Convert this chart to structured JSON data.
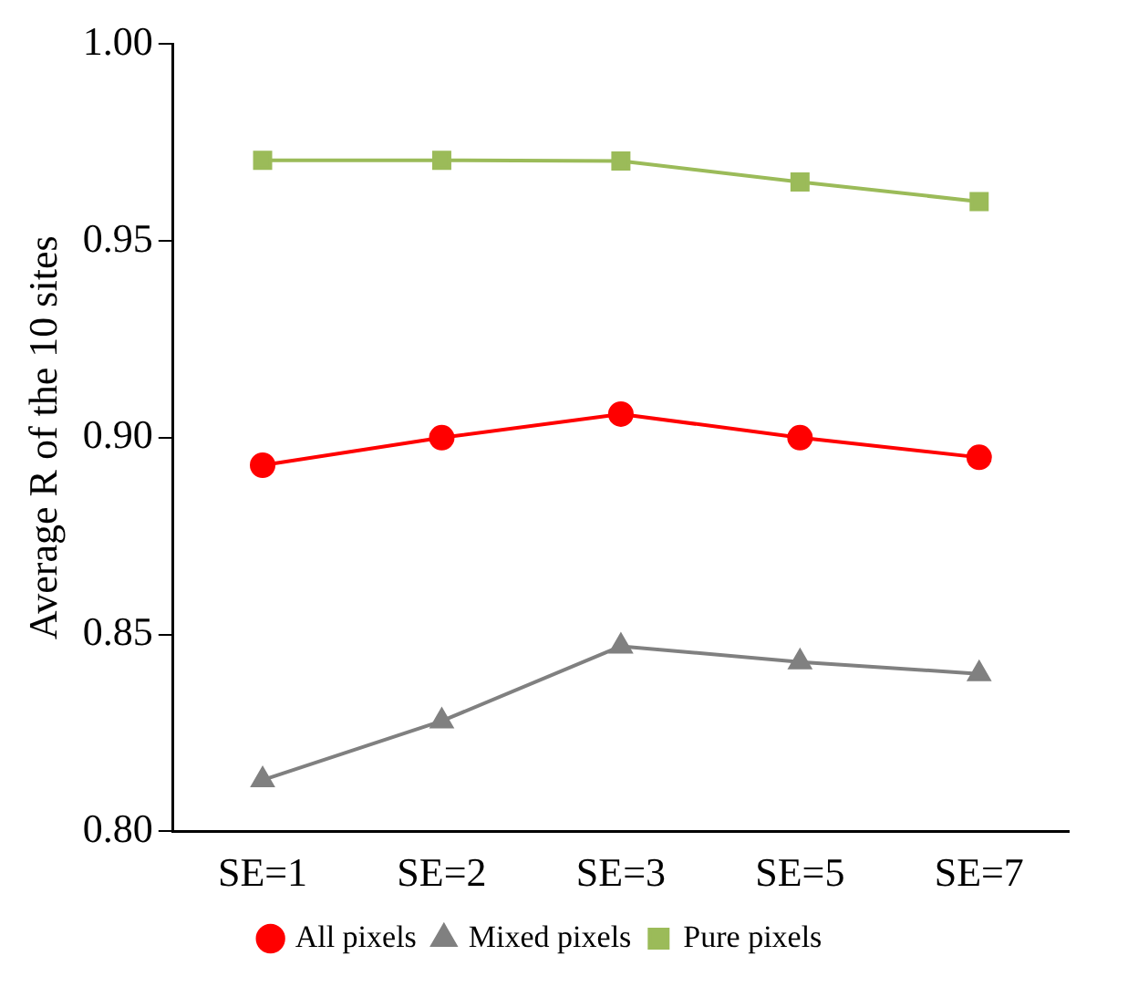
{
  "chart_data": {
    "type": "line",
    "ylabel": "Average R of the 10 sites",
    "categories": [
      "SE=1",
      "SE=2",
      "SE=3",
      "SE=5",
      "SE=7"
    ],
    "series": [
      {
        "name": "All pixels",
        "color": "#ff0000",
        "marker": "circle",
        "values": [
          0.893,
          0.9,
          0.906,
          0.9,
          0.895
        ]
      },
      {
        "name": "Mixed pixels",
        "color": "#808080",
        "marker": "triangle",
        "values": [
          0.813,
          0.828,
          0.847,
          0.843,
          0.84
        ]
      },
      {
        "name": "Pure pixels",
        "color": "#9bbb59",
        "marker": "square",
        "values": [
          0.9705,
          0.9705,
          0.9703,
          0.965,
          0.96
        ]
      }
    ],
    "ylim": [
      0.8,
      1.0
    ],
    "yticks": [
      {
        "value": 0.8,
        "label": "0.80"
      },
      {
        "value": 0.85,
        "label": "0.85"
      },
      {
        "value": 0.9,
        "label": "0.90"
      },
      {
        "value": 0.95,
        "label": "0.95"
      },
      {
        "value": 1.0,
        "label": "1.00"
      }
    ],
    "grid": false,
    "legend": "bottom",
    "line_style": "solid"
  }
}
